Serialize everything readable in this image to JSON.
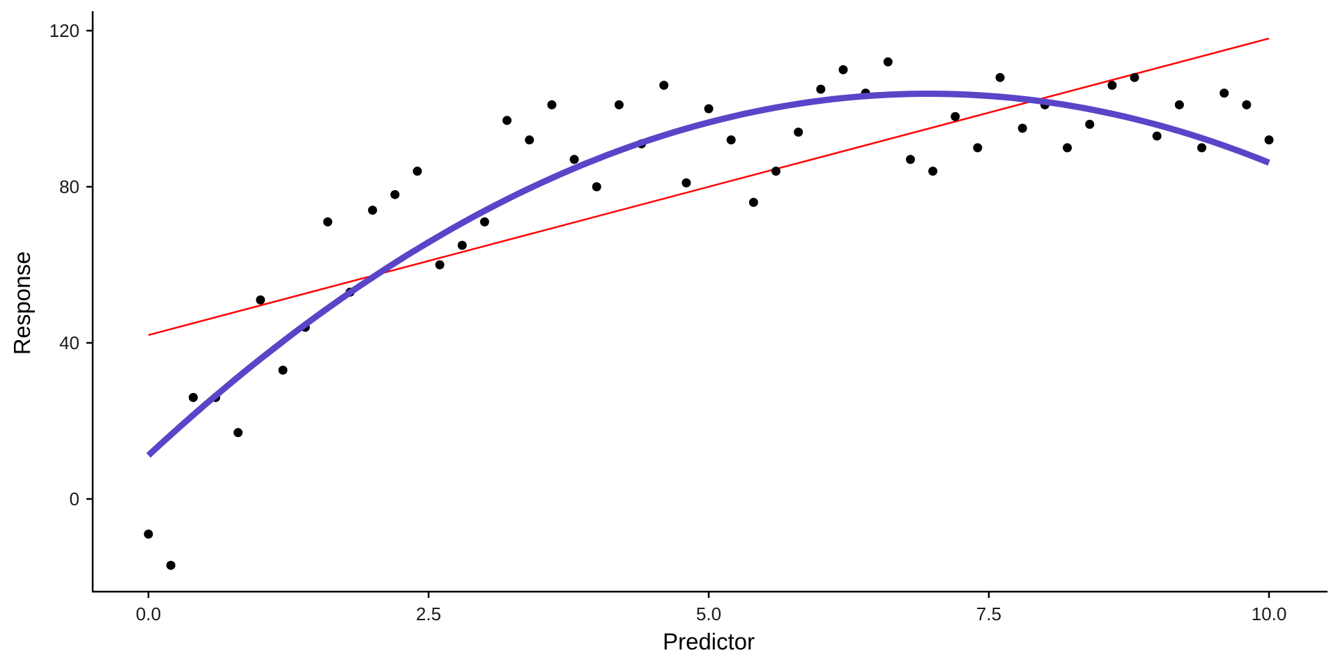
{
  "colors": {
    "points": "#000000",
    "linear_fit": "#ff0000",
    "quadratic_fit": "#5a45c8",
    "axis": "#000000"
  },
  "chart_data": {
    "type": "scatter",
    "title": "",
    "xlabel": "Predictor",
    "ylabel": "Response",
    "xlim": [
      -0.5,
      10.5
    ],
    "ylim": [
      -24,
      124
    ],
    "x_ticks": [
      0.0,
      2.5,
      5.0,
      7.5,
      10.0
    ],
    "x_tick_labels": [
      "0.0",
      "2.5",
      "5.0",
      "7.5",
      "10.0"
    ],
    "y_ticks": [
      0,
      40,
      80,
      120
    ],
    "y_tick_labels": [
      "0",
      "40",
      "80",
      "120"
    ],
    "grid": false,
    "legend": "none",
    "points": {
      "x": [
        0.0,
        0.2,
        0.4,
        0.6,
        0.8,
        1.0,
        1.2,
        1.4,
        1.6,
        1.8,
        2.0,
        2.2,
        2.4,
        2.6,
        2.8,
        3.0,
        3.2,
        3.4,
        3.6,
        3.8,
        4.0,
        4.2,
        4.4,
        4.6,
        4.8,
        5.0,
        5.2,
        5.4,
        5.6,
        5.8,
        6.0,
        6.2,
        6.4,
        6.6,
        6.8,
        7.0,
        7.2,
        7.4,
        7.6,
        7.8,
        8.0,
        8.2,
        8.4,
        8.6,
        8.8,
        9.0,
        9.2,
        9.4,
        9.6,
        9.8,
        10.0
      ],
      "y": [
        -9,
        -17,
        26,
        26,
        17,
        51,
        33,
        44,
        71,
        53,
        74,
        78,
        84,
        60,
        65,
        71,
        97,
        92,
        101,
        87,
        80,
        101,
        91,
        106,
        81,
        100,
        92,
        76,
        84,
        94,
        105,
        110,
        104,
        112,
        87,
        84,
        98,
        90,
        108,
        95,
        101,
        90,
        96,
        106,
        108,
        93,
        101,
        90,
        104,
        101,
        92
      ]
    },
    "series": [
      {
        "kind": "linear_fit",
        "x": [
          0.0,
          10.0
        ],
        "y": [
          42,
          118
        ]
      },
      {
        "kind": "quadratic_fit",
        "x": [
          0.0,
          1.0,
          2.0,
          3.0,
          4.0,
          5.0,
          6.0,
          7.0,
          8.0,
          9.0,
          10.0
        ],
        "y": [
          11,
          36,
          57,
          74,
          87,
          96,
          102,
          104,
          102,
          96,
          86
        ]
      }
    ]
  }
}
